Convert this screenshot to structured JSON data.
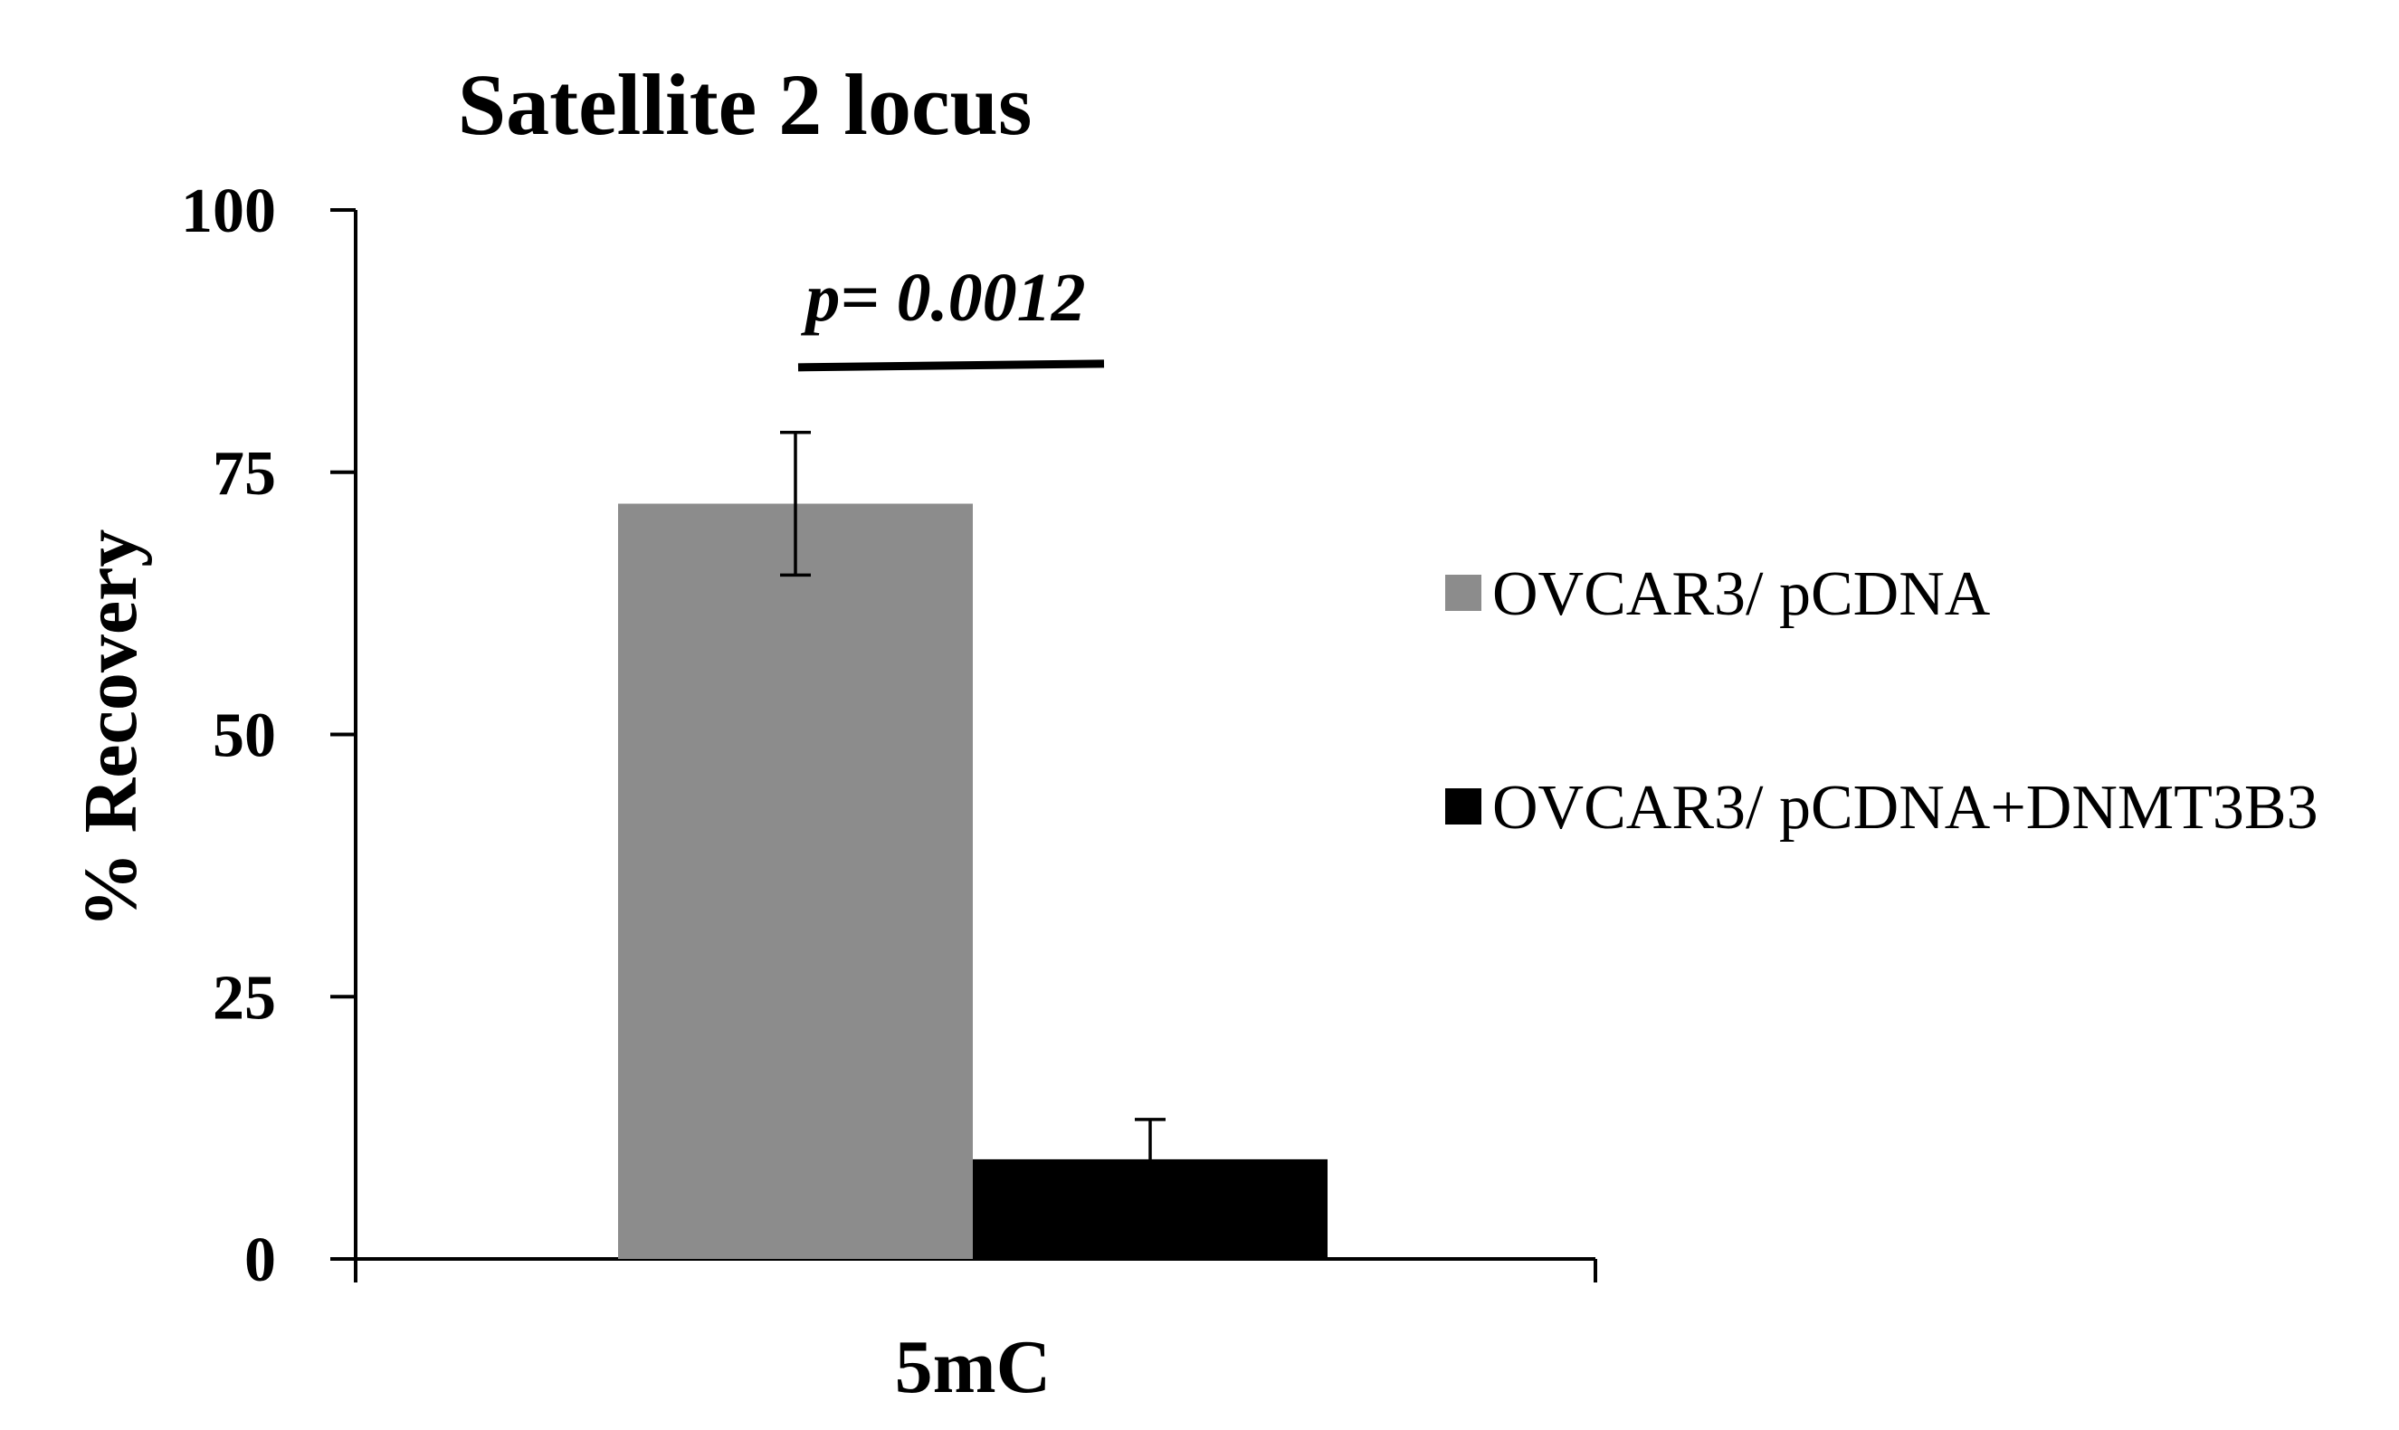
{
  "chart_data": {
    "type": "bar",
    "title": "Satellite 2 locus",
    "xlabel": "",
    "ylabel": "% Recovery",
    "ylim": [
      0,
      100
    ],
    "yticks": [
      "0",
      "25",
      "50",
      "75",
      "100"
    ],
    "categories": [
      "5mC"
    ],
    "series": [
      {
        "name": "OVCAR3/ pCDNA",
        "color": "#8c8c8c",
        "values": [
          72
        ],
        "error": [
          6.8
        ]
      },
      {
        "name": "OVCAR3/ pCDNA+DNMT3B3",
        "color": "#000000",
        "values": [
          9.5
        ],
        "error": [
          3.8
        ]
      }
    ],
    "annotation": {
      "text": "p= 0.0012",
      "value": 85
    },
    "legend_position": "right",
    "grid": false
  }
}
